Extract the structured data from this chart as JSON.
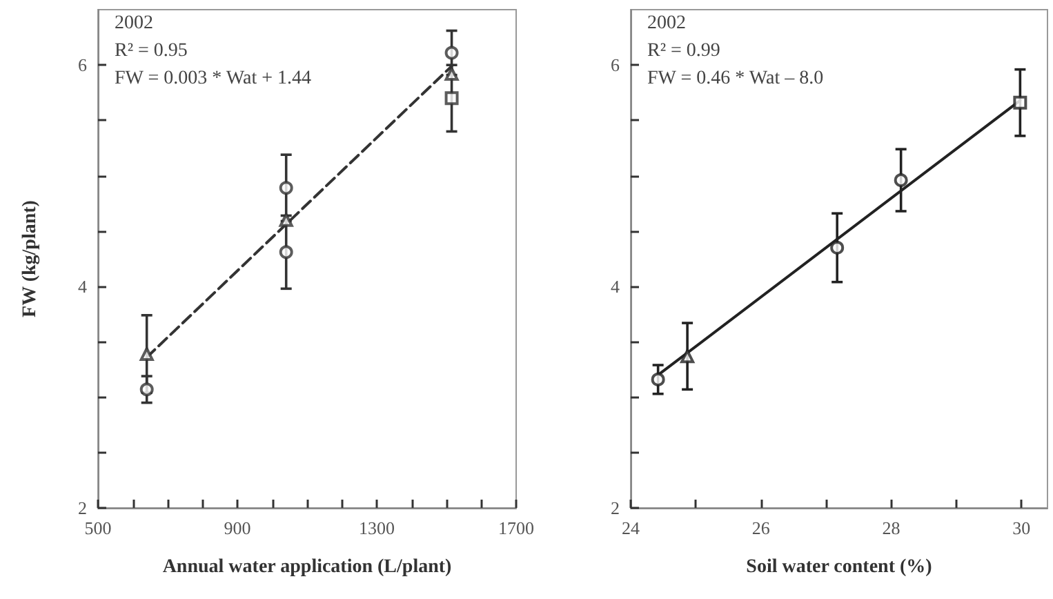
{
  "chart_data": [
    {
      "type": "scatter",
      "xlabel": "Annual water application (L/plant)",
      "ylabel": "FW (kg/plant)",
      "annotations": [
        "2002",
        "R² = 0.95",
        "FW = 0.003 * Wat + 1.44"
      ],
      "xlim": [
        500,
        1700
      ],
      "xticks": [
        500,
        {
          "value": 600,
          "label": null
        },
        {
          "value": 700,
          "label": null
        },
        {
          "value": 800,
          "label": null
        },
        900,
        {
          "value": 1000,
          "label": null
        },
        {
          "value": 1100,
          "label": null
        },
        {
          "value": 1200,
          "label": null
        },
        1300,
        {
          "value": 1400,
          "label": null
        },
        {
          "value": 1500,
          "label": null
        },
        {
          "value": 1600,
          "label": null
        },
        1700
      ],
      "ylim": [
        2,
        6.5
      ],
      "yticks": [
        2,
        {
          "value": 2.5,
          "label": null
        },
        {
          "value": 3,
          "label": null
        },
        {
          "value": 3.5,
          "label": null
        },
        4,
        {
          "value": 4.5,
          "label": null
        },
        {
          "value": 5,
          "label": null
        },
        {
          "value": 5.5,
          "label": null
        },
        6
      ],
      "grid": false,
      "series": [
        {
          "marker": "circle",
          "color": "#333333",
          "x": [
            640,
            1040,
            1040,
            1515
          ],
          "values": [
            3.07,
            4.89,
            4.31,
            6.11
          ],
          "errors": [
            0.12,
            0.3,
            0.33,
            0.2
          ]
        },
        {
          "marker": "square",
          "color": "#333333",
          "x": [
            1515
          ],
          "values": [
            5.7
          ],
          "errors": [
            0.3
          ]
        },
        {
          "marker": "triangle",
          "color": "#333333",
          "x": [
            640,
            1040,
            1515
          ],
          "values": [
            3.39,
            4.6,
            5.92
          ],
          "errors": [
            0.35,
            null,
            null
          ]
        },
        {
          "type": "line",
          "marker": "none",
          "line_style": "dashed",
          "color": "#333333",
          "x": [
            640,
            1515
          ],
          "values": [
            3.36,
            5.99
          ]
        }
      ]
    },
    {
      "type": "scatter",
      "xlabel": "Soil water content (%)",
      "annotations": [
        "2002",
        "R² = 0.99",
        "FW = 0.46 * Wat – 8.0"
      ],
      "xlim": [
        24,
        30.4
      ],
      "xticks": [
        24,
        {
          "value": 25,
          "label": null
        },
        26,
        {
          "value": 27,
          "label": null
        },
        28,
        {
          "value": 29,
          "label": null
        },
        30
      ],
      "ylim": [
        2,
        6.5
      ],
      "yticks": [
        2,
        {
          "value": 2.5,
          "label": null
        },
        {
          "value": 3,
          "label": null
        },
        {
          "value": 3.5,
          "label": null
        },
        4,
        {
          "value": 4.5,
          "label": null
        },
        {
          "value": 5,
          "label": null
        },
        {
          "value": 5.5,
          "label": null
        },
        6
      ],
      "grid": false,
      "series": [
        {
          "marker": "circle",
          "color": "#222222",
          "x": [
            24.42,
            27.17,
            28.15
          ],
          "values": [
            3.16,
            4.35,
            4.96
          ],
          "errors": [
            0.13,
            0.31,
            0.28
          ]
        },
        {
          "marker": "triangle",
          "color": "#222222",
          "x": [
            24.87
          ],
          "values": [
            3.37
          ],
          "errors": [
            0.3
          ]
        },
        {
          "marker": "square",
          "color": "#222222",
          "x": [
            29.98
          ],
          "values": [
            5.66
          ],
          "errors": [
            0.3
          ]
        },
        {
          "type": "line",
          "marker": "none",
          "line_style": "solid",
          "color": "#222222",
          "x": [
            24.42,
            29.98
          ],
          "values": [
            3.2,
            5.68
          ]
        }
      ]
    }
  ]
}
